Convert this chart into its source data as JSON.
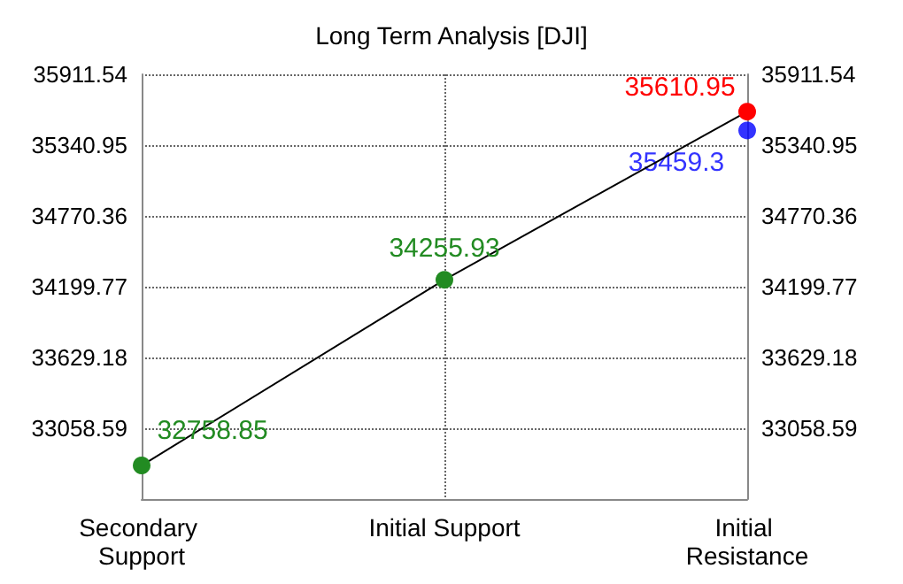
{
  "chart_data": {
    "type": "line",
    "title": "Long Term Analysis [DJI]",
    "categories": [
      "Secondary Support",
      "Initial Support",
      "Initial Resistance"
    ],
    "series": [
      {
        "color": "#000000",
        "colors": [
          "#228b22",
          "#228b22",
          "#ff0000"
        ],
        "values": [
          32758.85,
          34255.93,
          35610.95
        ]
      },
      {
        "type": "scatter",
        "color": "#0000ff",
        "x": [
          "Initial Resistance"
        ],
        "values": [
          35459.3
        ]
      }
    ],
    "ylim": [
      32488,
      35911.54
    ],
    "yticks": [
      33058.59,
      33629.18,
      34199.77,
      34770.36,
      35340.95,
      35911.54
    ],
    "y2lim": [
      32488,
      35911.54
    ],
    "y2ticks": [
      33058.59,
      33629.18,
      34199.77,
      34770.36,
      35340.95,
      35911.54
    ],
    "grid": true,
    "marker": "circle",
    "line_style": "solid",
    "data_labels": true
  }
}
